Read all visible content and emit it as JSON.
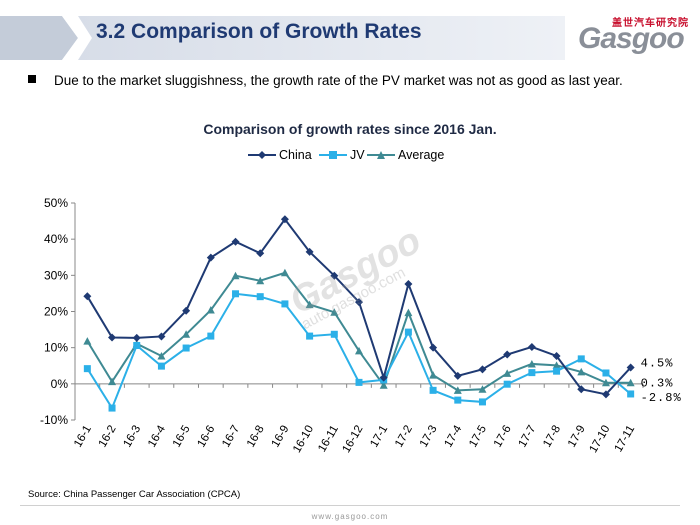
{
  "header": {
    "title": "3.2 Comparison of Growth Rates",
    "logo_cn": "盖世汽车研究院",
    "logo_text": "Gasgoo"
  },
  "bullet": {
    "text": "Due to the market sluggishness, the growth rate of the PV market was not as good as last year."
  },
  "watermark": {
    "text": "Gasgoo",
    "url": "auto.gasgoo.com"
  },
  "colors": {
    "title": "#1f3a73",
    "china": "#1f3a73",
    "jv": "#2bb0e8",
    "average": "#3f8a93",
    "accent": "#c8102e"
  },
  "chart_data": {
    "type": "line",
    "title": "Comparison of growth rates since 2016 Jan.",
    "categories": [
      "16-1",
      "16-2",
      "16-3",
      "16-4",
      "16-5",
      "16-6",
      "16-7",
      "16-8",
      "16-9",
      "16-10",
      "16-11",
      "16-12",
      "17-1",
      "17-2",
      "17-3",
      "17-4",
      "17-5",
      "17-6",
      "17-7",
      "17-8",
      "17-9",
      "17-10",
      "17-11"
    ],
    "series": [
      {
        "name": "China",
        "marker": "diamond",
        "values": [
          24.2,
          12.8,
          12.7,
          13.1,
          20.2,
          34.9,
          39.3,
          36.1,
          45.5,
          36.5,
          29.9,
          22.6,
          1.7,
          27.6,
          10.0,
          2.2,
          4.0,
          8.1,
          10.2,
          7.7,
          -1.5,
          -2.9,
          4.5
        ]
      },
      {
        "name": "JV",
        "marker": "square",
        "values": [
          4.2,
          -6.7,
          10.6,
          4.9,
          9.9,
          13.2,
          24.9,
          24.1,
          22.1,
          13.2,
          13.7,
          0.4,
          1.1,
          14.3,
          -1.8,
          -4.5,
          -5.0,
          -0.1,
          3.1,
          3.5,
          6.9,
          3.0,
          -2.8
        ]
      },
      {
        "name": "Average",
        "marker": "triangle",
        "values": [
          11.8,
          0.6,
          11.1,
          7.7,
          13.7,
          20.4,
          29.9,
          28.5,
          30.7,
          21.9,
          19.8,
          9.1,
          -0.4,
          19.7,
          2.4,
          -1.8,
          -1.5,
          2.9,
          5.5,
          5.1,
          3.3,
          0.3,
          0.3
        ]
      }
    ],
    "end_labels": [
      "4.5%",
      "0.3%",
      "-2.8%"
    ],
    "ylim": [
      -10,
      50
    ],
    "yticks": [
      -10,
      0,
      10,
      20,
      30,
      40,
      50
    ],
    "ytick_labels": [
      "-10%",
      "0%",
      "10%",
      "20%",
      "30%",
      "40%",
      "50%"
    ],
    "grid": false,
    "legend_position": "top-center",
    "xlabel": "",
    "ylabel": ""
  },
  "source": "Source: China Passenger Car Association (CPCA)",
  "footer": {
    "url": "www.gasgoo.com"
  }
}
